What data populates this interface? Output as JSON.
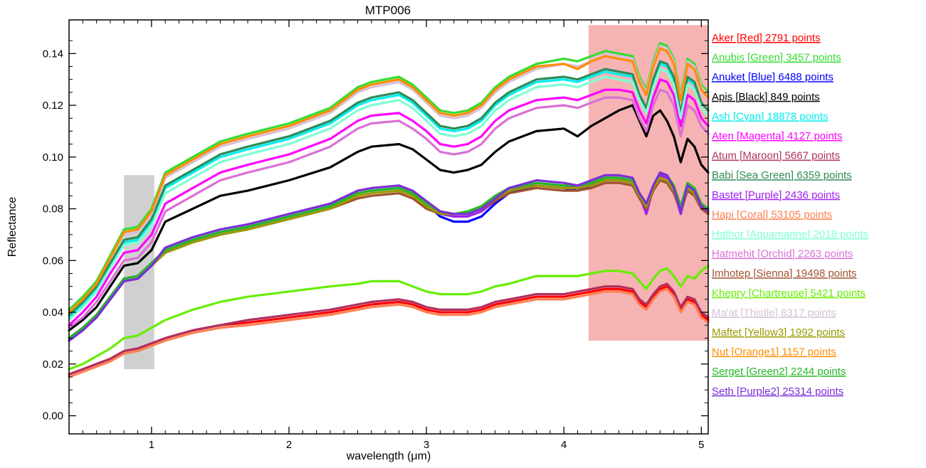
{
  "chart_data": {
    "type": "line",
    "title": "MTP006",
    "xlabel": "wavelength (μm)",
    "ylabel": "Reflectance",
    "xlim": [
      0.4,
      5.05
    ],
    "ylim": [
      -0.007,
      0.153
    ],
    "xticks": [
      1,
      2,
      3,
      4,
      5
    ],
    "xtick_labels": [
      "1",
      "2",
      "3",
      "4",
      "5"
    ],
    "yticks": [
      0.0,
      0.02,
      0.04,
      0.06,
      0.08,
      0.1,
      0.12,
      0.14
    ],
    "ytick_labels": [
      "0.00",
      "0.02",
      "0.04",
      "0.06",
      "0.08",
      "0.10",
      "0.12",
      "0.14"
    ],
    "grid": false,
    "legend_position": "right-outside",
    "highlight_regions": [
      {
        "x": [
          0.8,
          1.02
        ],
        "y": [
          0.018,
          0.093
        ],
        "color": "#c8c8c8"
      },
      {
        "x": [
          4.18,
          5.05
        ],
        "y": [
          0.029,
          0.151
        ],
        "color": "#f4a6a6"
      }
    ],
    "x": [
      0.4,
      0.5,
      0.6,
      0.7,
      0.8,
      0.9,
      1.0,
      1.1,
      1.3,
      1.5,
      1.7,
      2.0,
      2.3,
      2.5,
      2.6,
      2.8,
      2.9,
      3.0,
      3.1,
      3.2,
      3.3,
      3.4,
      3.5,
      3.6,
      3.8,
      4.0,
      4.1,
      4.2,
      4.3,
      4.4,
      4.5,
      4.55,
      4.6,
      4.65,
      4.7,
      4.75,
      4.8,
      4.85,
      4.9,
      4.95,
      5.0,
      5.05
    ],
    "series": [
      {
        "name": "Aker [Red] 2791 points",
        "color": "#ff0000",
        "values": [
          0.016,
          0.018,
          0.02,
          0.022,
          0.025,
          0.026,
          0.028,
          0.03,
          0.033,
          0.035,
          0.036,
          0.038,
          0.04,
          0.042,
          0.043,
          0.044,
          0.043,
          0.041,
          0.04,
          0.04,
          0.04,
          0.041,
          0.043,
          0.044,
          0.046,
          0.046,
          0.047,
          0.048,
          0.049,
          0.049,
          0.048,
          0.044,
          0.042,
          0.046,
          0.049,
          0.05,
          0.047,
          0.041,
          0.045,
          0.044,
          0.039,
          0.037
        ]
      },
      {
        "name": "Anubis [Green] 3457 points",
        "color": "#33dd33",
        "values": [
          0.041,
          0.046,
          0.052,
          0.062,
          0.072,
          0.073,
          0.08,
          0.094,
          0.1,
          0.106,
          0.109,
          0.113,
          0.119,
          0.127,
          0.129,
          0.131,
          0.128,
          0.123,
          0.118,
          0.117,
          0.118,
          0.121,
          0.127,
          0.131,
          0.136,
          0.138,
          0.137,
          0.139,
          0.141,
          0.14,
          0.139,
          0.131,
          0.126,
          0.137,
          0.144,
          0.143,
          0.138,
          0.124,
          0.138,
          0.136,
          0.128,
          0.125
        ]
      },
      {
        "name": "Anuket [Blue] 6488 points",
        "color": "#0000ff",
        "values": [
          0.03,
          0.034,
          0.039,
          0.046,
          0.053,
          0.054,
          0.059,
          0.064,
          0.068,
          0.071,
          0.073,
          0.077,
          0.081,
          0.086,
          0.087,
          0.088,
          0.086,
          0.082,
          0.077,
          0.075,
          0.075,
          0.077,
          0.082,
          0.086,
          0.089,
          0.088,
          0.087,
          0.089,
          0.091,
          0.091,
          0.09,
          0.085,
          0.081,
          0.088,
          0.093,
          0.092,
          0.088,
          0.08,
          0.089,
          0.087,
          0.081,
          0.079
        ]
      },
      {
        "name": "Apis [Black] 849 points",
        "color": "#000000",
        "values": [
          0.033,
          0.037,
          0.042,
          0.05,
          0.058,
          0.059,
          0.064,
          0.075,
          0.08,
          0.085,
          0.087,
          0.091,
          0.096,
          0.102,
          0.104,
          0.105,
          0.103,
          0.099,
          0.095,
          0.094,
          0.095,
          0.097,
          0.102,
          0.106,
          0.11,
          0.111,
          0.108,
          0.112,
          0.115,
          0.118,
          0.12,
          0.114,
          0.108,
          0.116,
          0.118,
          0.114,
          0.108,
          0.098,
          0.107,
          0.104,
          0.097,
          0.094
        ]
      },
      {
        "name": "Ash [Cyan] 18878 points",
        "color": "#00eeee",
        "values": [
          0.038,
          0.043,
          0.049,
          0.058,
          0.067,
          0.068,
          0.075,
          0.088,
          0.094,
          0.1,
          0.103,
          0.107,
          0.113,
          0.12,
          0.122,
          0.124,
          0.121,
          0.116,
          0.111,
          0.11,
          0.111,
          0.114,
          0.12,
          0.124,
          0.129,
          0.13,
          0.129,
          0.131,
          0.133,
          0.132,
          0.131,
          0.124,
          0.119,
          0.129,
          0.136,
          0.135,
          0.13,
          0.117,
          0.13,
          0.128,
          0.121,
          0.118
        ]
      },
      {
        "name": "Aten [Magenta] 4127 points",
        "color": "#ff00ff",
        "values": [
          0.035,
          0.04,
          0.046,
          0.055,
          0.063,
          0.064,
          0.07,
          0.082,
          0.088,
          0.094,
          0.097,
          0.101,
          0.107,
          0.114,
          0.116,
          0.117,
          0.114,
          0.11,
          0.105,
          0.104,
          0.105,
          0.108,
          0.114,
          0.118,
          0.122,
          0.123,
          0.122,
          0.124,
          0.126,
          0.126,
          0.125,
          0.118,
          0.113,
          0.123,
          0.13,
          0.129,
          0.124,
          0.112,
          0.124,
          0.122,
          0.115,
          0.112
        ]
      },
      {
        "name": "Atum [Maroon] 5667 points",
        "color": "#b03060",
        "values": [
          0.016,
          0.018,
          0.02,
          0.022,
          0.025,
          0.026,
          0.028,
          0.03,
          0.033,
          0.035,
          0.037,
          0.039,
          0.041,
          0.043,
          0.044,
          0.045,
          0.044,
          0.042,
          0.041,
          0.041,
          0.041,
          0.042,
          0.044,
          0.045,
          0.047,
          0.047,
          0.048,
          0.049,
          0.05,
          0.05,
          0.049,
          0.045,
          0.043,
          0.047,
          0.05,
          0.051,
          0.048,
          0.042,
          0.046,
          0.045,
          0.04,
          0.038
        ]
      },
      {
        "name": "Babi [Sea Green] 6359 points",
        "color": "#2e8b57",
        "values": [
          0.039,
          0.044,
          0.05,
          0.059,
          0.068,
          0.069,
          0.076,
          0.089,
          0.095,
          0.101,
          0.104,
          0.108,
          0.114,
          0.121,
          0.123,
          0.125,
          0.122,
          0.117,
          0.112,
          0.111,
          0.112,
          0.115,
          0.121,
          0.125,
          0.13,
          0.131,
          0.13,
          0.132,
          0.134,
          0.133,
          0.132,
          0.124,
          0.119,
          0.13,
          0.137,
          0.136,
          0.131,
          0.117,
          0.131,
          0.129,
          0.121,
          0.118
        ]
      },
      {
        "name": "Bastet [Purple] 2436 points",
        "color": "#a020f0",
        "values": [
          0.03,
          0.034,
          0.039,
          0.046,
          0.053,
          0.054,
          0.059,
          0.064,
          0.068,
          0.071,
          0.073,
          0.077,
          0.081,
          0.086,
          0.087,
          0.088,
          0.086,
          0.082,
          0.078,
          0.077,
          0.077,
          0.079,
          0.083,
          0.087,
          0.09,
          0.089,
          0.088,
          0.09,
          0.092,
          0.092,
          0.091,
          0.085,
          0.078,
          0.088,
          0.093,
          0.092,
          0.087,
          0.078,
          0.088,
          0.086,
          0.08,
          0.078
        ]
      },
      {
        "name": "Hapi [Coral] 53105 points",
        "color": "#ff7f50",
        "values": [
          0.015,
          0.017,
          0.019,
          0.021,
          0.024,
          0.025,
          0.027,
          0.029,
          0.032,
          0.034,
          0.035,
          0.037,
          0.039,
          0.041,
          0.042,
          0.043,
          0.042,
          0.04,
          0.039,
          0.039,
          0.039,
          0.04,
          0.042,
          0.043,
          0.045,
          0.045,
          0.046,
          0.047,
          0.048,
          0.048,
          0.047,
          0.043,
          0.041,
          0.045,
          0.048,
          0.049,
          0.046,
          0.04,
          0.044,
          0.043,
          0.038,
          0.036
        ]
      },
      {
        "name": "Hathor [Aquamarine] 2018 points",
        "color": "#7fffd4",
        "values": [
          0.037,
          0.042,
          0.048,
          0.057,
          0.066,
          0.067,
          0.073,
          0.086,
          0.092,
          0.098,
          0.101,
          0.105,
          0.111,
          0.118,
          0.12,
          0.122,
          0.119,
          0.114,
          0.109,
          0.108,
          0.109,
          0.112,
          0.118,
          0.122,
          0.127,
          0.128,
          0.127,
          0.129,
          0.131,
          0.13,
          0.129,
          0.122,
          0.117,
          0.127,
          0.134,
          0.133,
          0.128,
          0.115,
          0.128,
          0.126,
          0.119,
          0.116
        ]
      },
      {
        "name": "Hatmehit [Orchid] 2263 points",
        "color": "#da70d6",
        "values": [
          0.034,
          0.038,
          0.044,
          0.052,
          0.06,
          0.061,
          0.067,
          0.079,
          0.085,
          0.091,
          0.094,
          0.098,
          0.104,
          0.111,
          0.113,
          0.114,
          0.111,
          0.107,
          0.102,
          0.101,
          0.102,
          0.105,
          0.111,
          0.115,
          0.119,
          0.12,
          0.119,
          0.121,
          0.123,
          0.123,
          0.122,
          0.115,
          0.11,
          0.12,
          0.126,
          0.125,
          0.12,
          0.108,
          0.12,
          0.118,
          0.112,
          0.109
        ]
      },
      {
        "name": "Imhotep [Sienna] 19498 points",
        "color": "#a0522d",
        "values": [
          0.029,
          0.033,
          0.038,
          0.045,
          0.052,
          0.053,
          0.058,
          0.063,
          0.067,
          0.07,
          0.072,
          0.076,
          0.08,
          0.084,
          0.085,
          0.086,
          0.084,
          0.08,
          0.078,
          0.078,
          0.078,
          0.08,
          0.083,
          0.086,
          0.088,
          0.087,
          0.087,
          0.088,
          0.09,
          0.09,
          0.089,
          0.084,
          0.08,
          0.087,
          0.091,
          0.09,
          0.086,
          0.079,
          0.087,
          0.085,
          0.08,
          0.078
        ]
      },
      {
        "name": "Khepry [Chartreuse] 5421 points",
        "color": "#66ee00",
        "values": [
          0.018,
          0.02,
          0.023,
          0.026,
          0.03,
          0.031,
          0.034,
          0.037,
          0.041,
          0.044,
          0.046,
          0.048,
          0.05,
          0.051,
          0.052,
          0.052,
          0.05,
          0.048,
          0.047,
          0.047,
          0.047,
          0.048,
          0.05,
          0.051,
          0.054,
          0.054,
          0.054,
          0.055,
          0.056,
          0.056,
          0.055,
          0.052,
          0.049,
          0.053,
          0.056,
          0.057,
          0.054,
          0.05,
          0.054,
          0.053,
          0.056,
          0.058
        ]
      },
      {
        "name": "Ma'at [Thistle] 8317 points",
        "color": "#d8bfd8",
        "values": [
          0.04,
          0.045,
          0.051,
          0.061,
          0.07,
          0.071,
          0.078,
          0.092,
          0.098,
          0.104,
          0.107,
          0.111,
          0.117,
          0.125,
          0.127,
          0.129,
          0.126,
          0.121,
          0.116,
          0.115,
          0.116,
          0.119,
          0.125,
          0.129,
          0.134,
          0.136,
          0.135,
          0.137,
          0.14,
          0.139,
          0.138,
          0.13,
          0.125,
          0.136,
          0.143,
          0.142,
          0.137,
          0.123,
          0.137,
          0.135,
          0.127,
          0.124
        ]
      },
      {
        "name": "Maftet [Yellow3] 1992 points",
        "color": "#9a9a00",
        "values": [
          0.029,
          0.033,
          0.038,
          0.045,
          0.052,
          0.053,
          0.058,
          0.063,
          0.067,
          0.07,
          0.072,
          0.076,
          0.08,
          0.085,
          0.086,
          0.087,
          0.085,
          0.081,
          0.078,
          0.078,
          0.078,
          0.08,
          0.084,
          0.087,
          0.089,
          0.088,
          0.088,
          0.089,
          0.091,
          0.091,
          0.09,
          0.085,
          0.081,
          0.088,
          0.092,
          0.091,
          0.087,
          0.08,
          0.088,
          0.086,
          0.081,
          0.079
        ]
      },
      {
        "name": "Nut [Orange1] 1157 points",
        "color": "#ff8c00",
        "values": [
          0.04,
          0.045,
          0.051,
          0.061,
          0.071,
          0.072,
          0.079,
          0.093,
          0.099,
          0.105,
          0.108,
          0.112,
          0.118,
          0.126,
          0.128,
          0.13,
          0.127,
          0.122,
          0.117,
          0.116,
          0.117,
          0.12,
          0.126,
          0.13,
          0.135,
          0.136,
          0.134,
          0.137,
          0.139,
          0.138,
          0.137,
          0.129,
          0.124,
          0.135,
          0.142,
          0.141,
          0.136,
          0.122,
          0.136,
          0.134,
          0.126,
          0.123
        ]
      },
      {
        "name": "Serget [Green2] 2244 points",
        "color": "#22bb22",
        "values": [
          0.03,
          0.034,
          0.039,
          0.046,
          0.053,
          0.054,
          0.059,
          0.064,
          0.068,
          0.071,
          0.073,
          0.077,
          0.081,
          0.086,
          0.087,
          0.088,
          0.086,
          0.082,
          0.079,
          0.078,
          0.079,
          0.081,
          0.085,
          0.088,
          0.09,
          0.089,
          0.089,
          0.09,
          0.092,
          0.092,
          0.091,
          0.086,
          0.082,
          0.089,
          0.094,
          0.093,
          0.089,
          0.081,
          0.09,
          0.088,
          0.082,
          0.08
        ]
      },
      {
        "name": "Seth [Purple2] 25314 points",
        "color": "#7b2fd9",
        "values": [
          0.029,
          0.033,
          0.038,
          0.045,
          0.052,
          0.053,
          0.058,
          0.065,
          0.069,
          0.072,
          0.074,
          0.078,
          0.082,
          0.087,
          0.088,
          0.089,
          0.087,
          0.083,
          0.079,
          0.078,
          0.078,
          0.08,
          0.084,
          0.088,
          0.091,
          0.09,
          0.089,
          0.091,
          0.093,
          0.093,
          0.092,
          0.086,
          0.082,
          0.089,
          0.094,
          0.093,
          0.088,
          0.079,
          0.089,
          0.087,
          0.081,
          0.079
        ]
      }
    ]
  }
}
